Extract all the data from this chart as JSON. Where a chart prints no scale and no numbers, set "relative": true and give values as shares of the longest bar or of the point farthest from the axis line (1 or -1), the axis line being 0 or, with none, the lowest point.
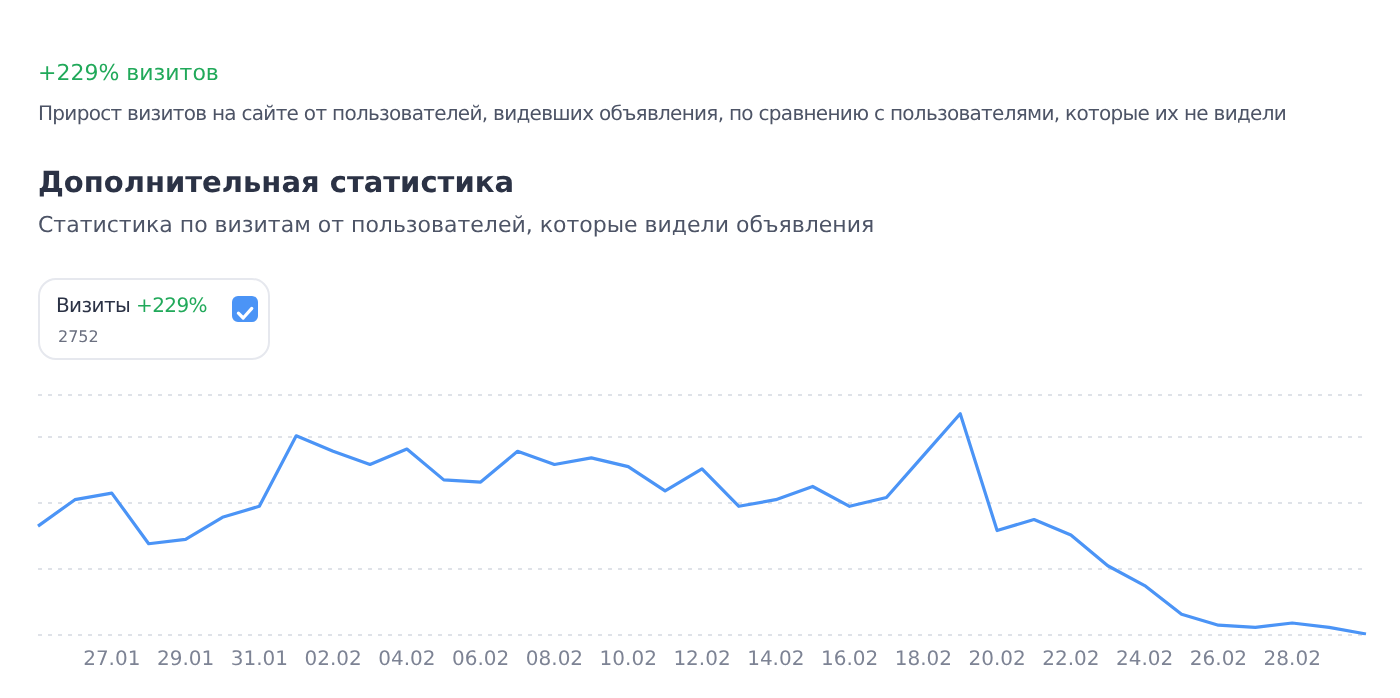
{
  "chart_data": {
    "type": "line",
    "subtitle": "+229% визитов",
    "annotations": [
      "Прирост визитов на сайте от пользователей, видевших объявления, по сравнению с пользователями, которые их не видели",
      "Дополнительная статистика",
      "Статистика по визитам от пользователей, которые видели объявления",
      "+229%",
      "2752"
    ],
    "categories": [
      null,
      null,
      "27.01",
      null,
      "29.01",
      null,
      "31.01",
      null,
      "02.02",
      null,
      "04.02",
      null,
      "06.02",
      null,
      "08.02",
      null,
      "10.02",
      null,
      "12.02",
      null,
      "14.02",
      null,
      "16.02",
      null,
      "18.02",
      null,
      "20.02",
      null,
      "22.02",
      null,
      "24.02",
      null,
      "26.02",
      null,
      "28.02",
      null,
      null
    ],
    "series": [
      {
        "name": "Визиты",
        "color": "#4b94f6",
        "values": [
          0.49,
          0.61,
          0.64,
          0.41,
          0.43,
          0.53,
          0.58,
          0.9,
          0.83,
          0.77,
          0.84,
          0.7,
          0.69,
          0.83,
          0.77,
          0.8,
          0.76,
          0.65,
          0.75,
          0.58,
          0.61,
          0.67,
          0.58,
          0.62,
          0.81,
          1,
          0.47,
          0.52,
          0.45,
          0.31,
          0.22,
          0.09,
          0.04,
          0.03,
          0.05,
          0.03,
          0
        ]
      }
    ],
    "relative": true,
    "grid": "y",
    "legend": "top left",
    "marker": "none",
    "line_style": "solid"
  }
}
